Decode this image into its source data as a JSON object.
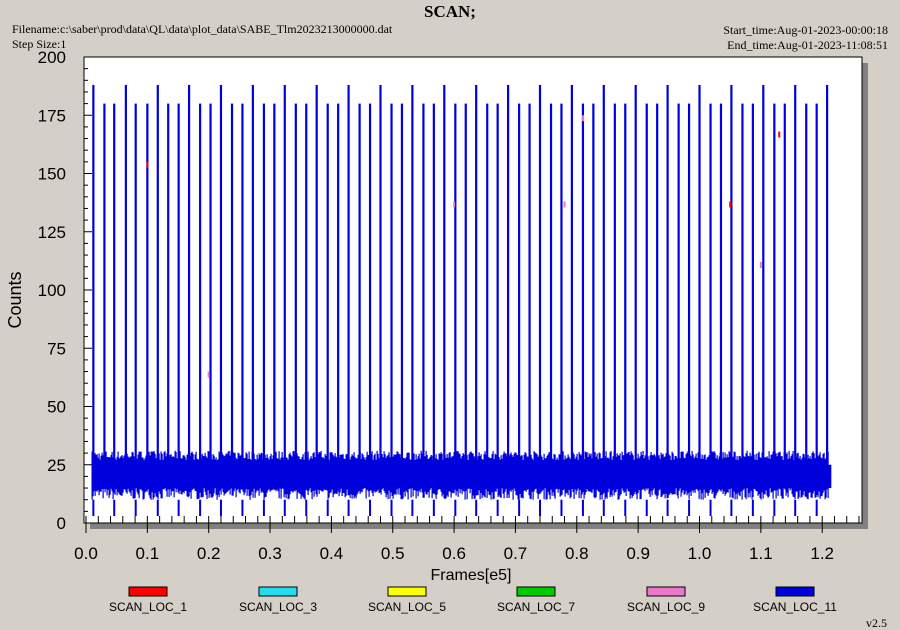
{
  "header": {
    "title": "SCAN;",
    "filename": "Filename:c:\\saber\\prod\\data\\QL\\data\\plot_data\\SABE_Tlm2023213000000.dat",
    "step_size": "Step Size:1",
    "start_time": "Start_time:Aug-01-2023-00:00:18",
    "end_time": "End_time:Aug-01-2023-11:08:51",
    "version": "v2.5"
  },
  "chart_data": {
    "type": "line",
    "title": "SCAN;",
    "xlabel": "Frames[e5]",
    "ylabel": "Counts",
    "xlim": [
      0.0,
      1.27
    ],
    "ylim": [
      0,
      200
    ],
    "x_ticks": [
      "0.0",
      "0.1",
      "0.2",
      "0.3",
      "0.4",
      "0.5",
      "0.6",
      "0.7",
      "0.8",
      "0.9",
      "1.0",
      "1.1",
      "1.2"
    ],
    "y_ticks": [
      "0",
      "25",
      "50",
      "75",
      "100",
      "125",
      "150",
      "175",
      "200"
    ],
    "x_tick_values": [
      0.0,
      0.1,
      0.2,
      0.3,
      0.4,
      0.5,
      0.6,
      0.7,
      0.8,
      0.9,
      1.0,
      1.1,
      1.2
    ],
    "y_tick_values": [
      0,
      25,
      50,
      75,
      100,
      125,
      150,
      175,
      200
    ],
    "x_minor_step": 0.02,
    "grid": false,
    "legend_position": "bottom",
    "series": [
      {
        "name": "SCAN_LOC_1",
        "color": "#ff0000"
      },
      {
        "name": "SCAN_LOC_3",
        "color": "#22ddee"
      },
      {
        "name": "SCAN_LOC_5",
        "color": "#ffff00"
      },
      {
        "name": "SCAN_LOC_7",
        "color": "#00cc00"
      },
      {
        "name": "SCAN_LOC_9",
        "color": "#ee77cc"
      },
      {
        "name": "SCAN_LOC_11",
        "color": "#0000dd"
      }
    ],
    "data_range": [
      0.01,
      1.21
    ],
    "band": {
      "min": 10,
      "max": 31,
      "dense_min": 15,
      "dense_max": 27
    },
    "spike_peaks": [
      180,
      188
    ],
    "spike_period": 0.052,
    "spike_x": [
      0.012,
      0.03,
      0.046,
      0.065,
      0.081,
      0.1,
      0.117,
      0.134,
      0.151,
      0.168,
      0.186,
      0.203,
      0.22,
      0.238,
      0.255,
      0.272,
      0.29,
      0.307,
      0.324,
      0.342,
      0.359,
      0.376,
      0.394,
      0.411,
      0.428,
      0.446,
      0.463,
      0.48,
      0.498,
      0.515,
      0.532,
      0.55,
      0.567,
      0.584,
      0.602,
      0.619,
      0.636,
      0.654,
      0.671,
      0.688,
      0.706,
      0.723,
      0.74,
      0.758,
      0.775,
      0.792,
      0.81,
      0.827,
      0.844,
      0.862,
      0.879,
      0.896,
      0.914,
      0.931,
      0.948,
      0.966,
      0.983,
      1.0,
      1.018,
      1.035,
      1.052,
      1.07,
      1.087,
      1.104,
      1.122,
      1.139,
      1.156,
      1.174,
      1.191,
      1.208
    ]
  }
}
